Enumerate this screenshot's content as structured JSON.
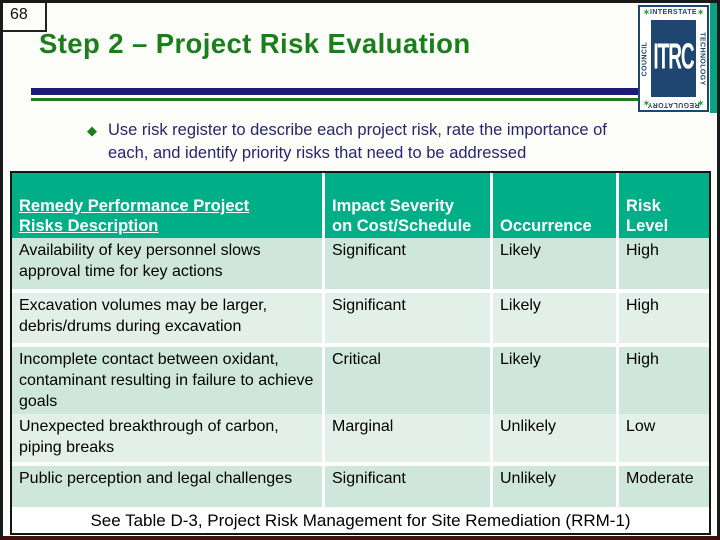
{
  "slide": {
    "page_number": "68",
    "title": "Step 2 – Project Risk Evaluation"
  },
  "logo": {
    "center": "ITRC",
    "top_word": "INTERSTATE",
    "right_word": "TECHNOLOGY",
    "bottom_word": "REGULATORY",
    "left_word": "COUNCIL",
    "star": "✶"
  },
  "bullet": {
    "marker": "◆",
    "text": "Use risk register to describe each project risk, rate the importance of\neach, and identify priority risks that need to be addressed"
  },
  "table": {
    "headers": {
      "description": "Remedy Performance Project\nRisks  Description",
      "impact": "Impact Severity\non Cost/Schedule",
      "occurrence": "Occurrence",
      "risk": "Risk\nLevel"
    },
    "rows": [
      {
        "description": "Availability of key personnel slows approval time for key actions",
        "impact": "Significant",
        "occurrence": "Likely",
        "risk": "High"
      },
      {
        "description": "Excavation volumes may be larger, debris/drums during excavation",
        "impact": "Significant",
        "occurrence": "Likely",
        "risk": "High"
      },
      {
        "description": "Incomplete contact between oxidant, contaminant resulting in failure to achieve goals",
        "impact": "Critical",
        "occurrence": "Likely",
        "risk": "High"
      },
      {
        "description": "Unexpected breakthrough of carbon, piping breaks",
        "impact": "Marginal",
        "occurrence": "Unlikely",
        "risk": "Low"
      },
      {
        "description": "Public perception and legal challenges",
        "impact": "Significant",
        "occurrence": "Unlikely",
        "risk": "Moderate"
      }
    ],
    "footnote": "See Table D-3, Project Risk Management for Site Remediation (RRM-1)"
  },
  "colors": {
    "title_green": "#1a7f1a",
    "header_teal": "#00ae88",
    "row_mint_dark": "#cfe7db",
    "row_mint_light": "#e2f0e8",
    "rule_navy": "#1b1b7a",
    "rule_green": "#1f7a1f",
    "bullet_text_navy": "#26266e",
    "logo_navy": "#1f4571",
    "slide_border": "#1a1a1a"
  }
}
